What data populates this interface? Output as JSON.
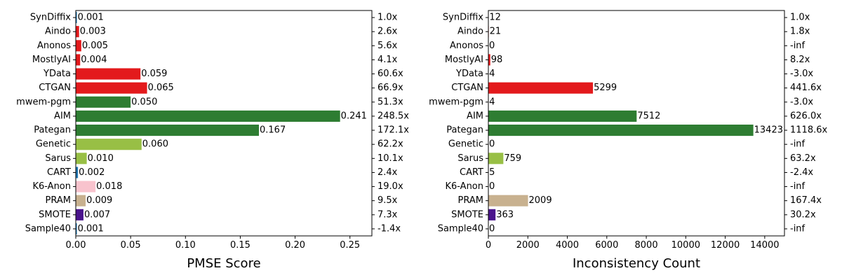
{
  "chart_data": [
    {
      "type": "bar",
      "orientation": "horizontal",
      "xlabel": "PMSE Score",
      "xlim": [
        0,
        0.27
      ],
      "xticks": [
        "0.00",
        "0.05",
        "0.10",
        "0.15",
        "0.20",
        "0.25"
      ],
      "xtick_values": [
        0,
        0.05,
        0.1,
        0.15,
        0.2,
        0.25
      ],
      "categories": [
        "SynDiffix",
        "Aindo",
        "Anonos",
        "MostlyAI",
        "YData",
        "CTGAN",
        "mwem-pgm",
        "AIM",
        "Pategan",
        "Genetic",
        "Sarus",
        "CART",
        "K6-Anon",
        "PRAM",
        "SMOTE",
        "Sample40"
      ],
      "values": [
        0.001,
        0.003,
        0.005,
        0.004,
        0.059,
        0.065,
        0.05,
        0.241,
        0.167,
        0.06,
        0.01,
        0.002,
        0.018,
        0.009,
        0.007,
        0.001
      ],
      "value_labels": [
        "0.001",
        "0.003",
        "0.005",
        "0.004",
        "0.059",
        "0.065",
        "0.050",
        "0.241",
        "0.167",
        "0.060",
        "0.010",
        "0.002",
        "0.018",
        "0.009",
        "0.007",
        "0.001"
      ],
      "right_labels": [
        "1.0x",
        "2.6x",
        "5.6x",
        "4.1x",
        "60.6x",
        "66.9x",
        "51.3x",
        "248.5x",
        "172.1x",
        "62.2x",
        "10.1x",
        "2.4x",
        "19.0x",
        "9.5x",
        "7.3x",
        "-1.4x"
      ],
      "colors": [
        "#1f77b4",
        "#e31a1c",
        "#e31a1c",
        "#e31a1c",
        "#e31a1c",
        "#e31a1c",
        "#2e7d32",
        "#2e7d32",
        "#2e7d32",
        "#98bf45",
        "#98bf45",
        "#1f77b4",
        "#f8c3cd",
        "#c8b18f",
        "#4a148c",
        "#1f77b4"
      ]
    },
    {
      "type": "bar",
      "orientation": "horizontal",
      "xlabel": "Inconsistency Count",
      "xlim": [
        0,
        15000
      ],
      "xticks": [
        "0",
        "2000",
        "4000",
        "6000",
        "8000",
        "10000",
        "12000",
        "14000"
      ],
      "xtick_values": [
        0,
        2000,
        4000,
        6000,
        8000,
        10000,
        12000,
        14000
      ],
      "categories": [
        "SynDiffix",
        "Aindo",
        "Anonos",
        "MostlyAI",
        "YData",
        "CTGAN",
        "mwem-pgm",
        "AIM",
        "Pategan",
        "Genetic",
        "Sarus",
        "CART",
        "K6-Anon",
        "PRAM",
        "SMOTE",
        "Sample40"
      ],
      "values": [
        12,
        21,
        0,
        98,
        4,
        5299,
        4,
        7512,
        13423,
        0,
        759,
        5,
        0,
        2009,
        363,
        0
      ],
      "value_labels": [
        "12",
        "21",
        "0",
        "98",
        "4",
        "5299",
        "4",
        "7512",
        "13423",
        "0",
        "759",
        "5",
        "0",
        "2009",
        "363",
        "0"
      ],
      "right_labels": [
        "1.0x",
        "1.8x",
        "-inf",
        "8.2x",
        "-3.0x",
        "441.6x",
        "-3.0x",
        "626.0x",
        "1118.6x",
        "-inf",
        "63.2x",
        "-2.4x",
        "-inf",
        "167.4x",
        "30.2x",
        "-inf"
      ],
      "colors": [
        "#1f77b4",
        "#e31a1c",
        "#e31a1c",
        "#e31a1c",
        "#e31a1c",
        "#e31a1c",
        "#2e7d32",
        "#2e7d32",
        "#2e7d32",
        "#98bf45",
        "#98bf45",
        "#1f77b4",
        "#f8c3cd",
        "#c8b18f",
        "#4a148c",
        "#1f77b4"
      ]
    }
  ]
}
